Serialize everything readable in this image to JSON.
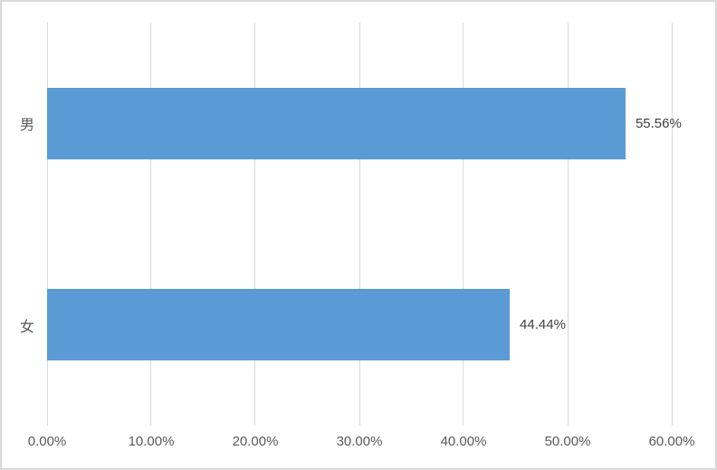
{
  "chart_data": {
    "type": "bar",
    "orientation": "horizontal",
    "title": "",
    "xlabel": "",
    "ylabel": "",
    "categories": [
      "男",
      "女"
    ],
    "values": [
      55.56,
      44.44
    ],
    "data_labels": [
      "55.56%",
      "44.44%"
    ],
    "x_ticks": [
      "0.00%",
      "10.00%",
      "20.00%",
      "30.00%",
      "40.00%",
      "50.00%",
      "60.00%"
    ],
    "x_tick_values": [
      0,
      10,
      20,
      30,
      40,
      50,
      60
    ],
    "xlim": [
      0,
      60
    ],
    "grid": "vertical-only",
    "legend": "none",
    "colors": {
      "bar_fill": "#5B9BD5",
      "gridline": "#D9D9D9",
      "chart_border": "#D9D9D9",
      "axis_text": "#595959",
      "data_label_text": "#404040",
      "background": "#FFFFFF"
    }
  }
}
